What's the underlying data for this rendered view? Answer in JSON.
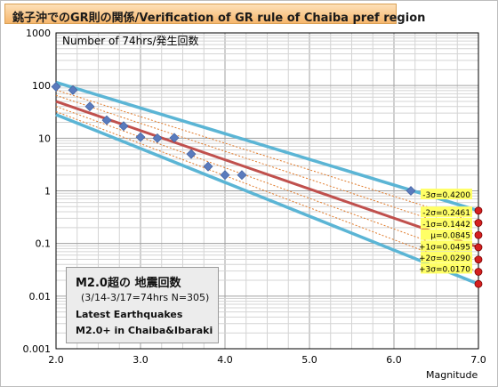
{
  "title": "銚子沖でのGR則の関係/Verification of GR rule of Chaiba pref region",
  "chart_data": {
    "type": "scatter",
    "ylabel": "Number of 74hrs/発生回数",
    "xlabel": "Magnitude",
    "xlim": [
      2.0,
      7.0
    ],
    "ylim": [
      0.001,
      1000
    ],
    "yscale": "log",
    "x_ticks": [
      "2.0",
      "3.0",
      "4.0",
      "5.0",
      "6.0",
      "7.0"
    ],
    "y_ticks": [
      "1000",
      "100",
      "10",
      "1",
      "0.1",
      "0.01",
      "0.001"
    ],
    "grid": true,
    "points": [
      {
        "x": 2.0,
        "y": 95
      },
      {
        "x": 2.2,
        "y": 82
      },
      {
        "x": 2.4,
        "y": 40
      },
      {
        "x": 2.6,
        "y": 22
      },
      {
        "x": 2.8,
        "y": 17
      },
      {
        "x": 3.0,
        "y": 10.5
      },
      {
        "x": 3.2,
        "y": 10
      },
      {
        "x": 3.4,
        "y": 10.2
      },
      {
        "x": 3.6,
        "y": 5
      },
      {
        "x": 3.8,
        "y": 2.9
      },
      {
        "x": 4.0,
        "y": 2
      },
      {
        "x": 4.2,
        "y": 2
      },
      {
        "x": 6.2,
        "y": 1
      }
    ],
    "lines": [
      {
        "label": "-3σ=0.4200",
        "kind": "outer",
        "x": [
          2.0,
          7.0
        ],
        "y": [
          115,
          0.42
        ]
      },
      {
        "label": "-2σ=0.2461",
        "kind": "dotted",
        "x": [
          2.0,
          7.0
        ],
        "y": [
          82,
          0.2461
        ]
      },
      {
        "label": "-1σ=0.1442",
        "kind": "dotted",
        "x": [
          2.0,
          7.0
        ],
        "y": [
          65,
          0.1442
        ]
      },
      {
        "label": "μ=0.0845",
        "kind": "mean",
        "x": [
          2.0,
          7.0
        ],
        "y": [
          50,
          0.0845
        ]
      },
      {
        "label": "+1σ=0.0495",
        "kind": "dotted",
        "x": [
          2.0,
          7.0
        ],
        "y": [
          40,
          0.0495
        ]
      },
      {
        "label": "+2σ=0.0290",
        "kind": "dotted",
        "x": [
          2.0,
          7.0
        ],
        "y": [
          32,
          0.029
        ]
      },
      {
        "label": "+3σ=0.0170",
        "kind": "outer",
        "x": [
          2.0,
          7.0
        ],
        "y": [
          28,
          0.017
        ]
      }
    ]
  },
  "info_box": {
    "line1": "M2.0超の 地震回数",
    "line2": "(3/14-3/17=74hrs N=305)",
    "line3": "Latest Earthquakes",
    "line4": "M2.0+ in Chaiba&Ibaraki"
  },
  "colors": {
    "outer_line": "#5bb5d5",
    "mean_line": "#c0504d",
    "dotted_line": "#e07a2a",
    "point": "#5a7bbd",
    "end_marker": "#d42020",
    "label_bg": "#ffff66"
  }
}
